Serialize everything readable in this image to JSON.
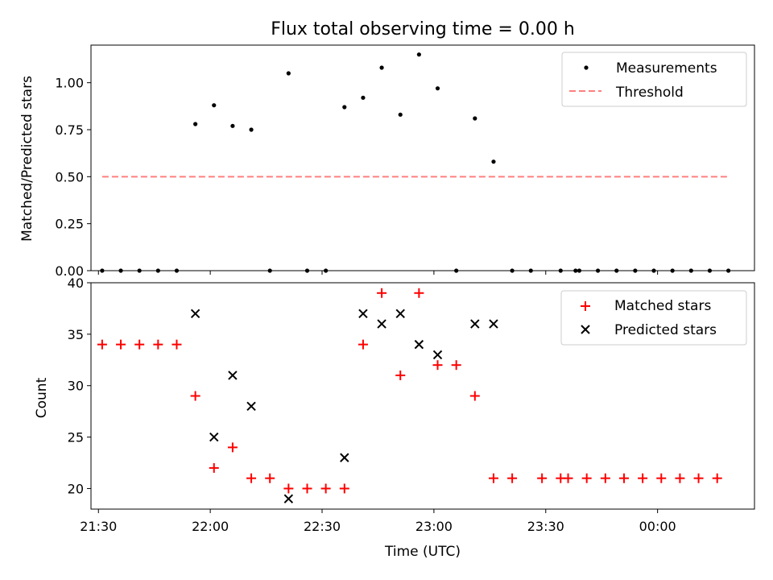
{
  "chart_data": [
    {
      "type": "scatter",
      "title": "Flux total observing time = 0.00 h",
      "xlabel": "",
      "ylabel": "Matched/Predicted stars",
      "ylim": [
        0,
        1.2
      ],
      "yticks": [
        "0.00",
        "0.25",
        "0.50",
        "0.75",
        "1.00"
      ],
      "ytick_values": [
        0,
        0.25,
        0.5,
        0.75,
        1.0
      ],
      "legend_position": "top-right",
      "series": [
        {
          "name": "Measurements",
          "color": "#000000",
          "marker": "dot",
          "x": [
            "21:31",
            "21:36",
            "21:41",
            "21:46",
            "21:51",
            "21:56",
            "22:01",
            "22:06",
            "22:11",
            "22:16",
            "22:21",
            "22:26",
            "22:31",
            "22:36",
            "22:41",
            "22:46",
            "22:51",
            "22:56",
            "23:01",
            "23:06",
            "23:11",
            "23:16",
            "23:21",
            "23:26",
            "23:34",
            "23:38",
            "23:39",
            "23:44",
            "23:49",
            "23:54",
            "23:59",
            "00:04",
            "00:09",
            "00:14",
            "00:19"
          ],
          "y": [
            0,
            0,
            0,
            0,
            0,
            0.78,
            0.88,
            0.77,
            0.75,
            0,
            1.05,
            0,
            0,
            0.87,
            0.92,
            1.08,
            0.83,
            1.15,
            0.97,
            0,
            0.81,
            0.58,
            0,
            0,
            0,
            0,
            0,
            0,
            0,
            0,
            0,
            0,
            0,
            0,
            0
          ]
        },
        {
          "name": "Threshold",
          "color": "#ff7f7f",
          "marker": "dashed-line",
          "x": [
            "21:31",
            "00:19"
          ],
          "y": [
            0.5,
            0.5
          ]
        }
      ]
    },
    {
      "type": "scatter",
      "title": "",
      "xlabel": "Time (UTC)",
      "ylabel": "Count",
      "ylim": [
        18,
        40
      ],
      "yticks": [
        "20",
        "25",
        "30",
        "35",
        "40"
      ],
      "ytick_values": [
        20,
        25,
        30,
        35,
        40
      ],
      "xlim": [
        "21:28",
        "00:26"
      ],
      "xticks": [
        "21:30",
        "22:00",
        "22:30",
        "23:00",
        "23:30",
        "00:00"
      ],
      "legend_position": "top-right",
      "series": [
        {
          "name": "Matched stars",
          "color": "#ff0000",
          "marker": "plus",
          "x": [
            "21:31",
            "21:36",
            "21:41",
            "21:46",
            "21:51",
            "21:56",
            "22:01",
            "22:06",
            "22:11",
            "22:16",
            "22:21",
            "22:26",
            "22:31",
            "22:36",
            "22:41",
            "22:46",
            "22:51",
            "22:56",
            "23:01",
            "23:06",
            "23:11",
            "23:16",
            "23:21",
            "23:29",
            "23:34",
            "23:36",
            "23:41",
            "23:46",
            "23:51",
            "23:56",
            "00:01",
            "00:06",
            "00:11",
            "00:16"
          ],
          "y": [
            34,
            34,
            34,
            34,
            34,
            29,
            22,
            24,
            21,
            21,
            20,
            20,
            20,
            20,
            34,
            39,
            31,
            39,
            32,
            32,
            29,
            21,
            21,
            21,
            21,
            21,
            21,
            21,
            21,
            21,
            21,
            21,
            21,
            21
          ]
        },
        {
          "name": "Predicted stars",
          "color": "#000000",
          "marker": "x",
          "x": [
            "21:56",
            "22:01",
            "22:06",
            "22:11",
            "22:21",
            "22:36",
            "22:41",
            "22:46",
            "22:51",
            "22:56",
            "23:01",
            "23:11",
            "23:16"
          ],
          "y": [
            37,
            25,
            31,
            28,
            19,
            23,
            37,
            36,
            37,
            34,
            33,
            36,
            36
          ]
        }
      ]
    }
  ]
}
